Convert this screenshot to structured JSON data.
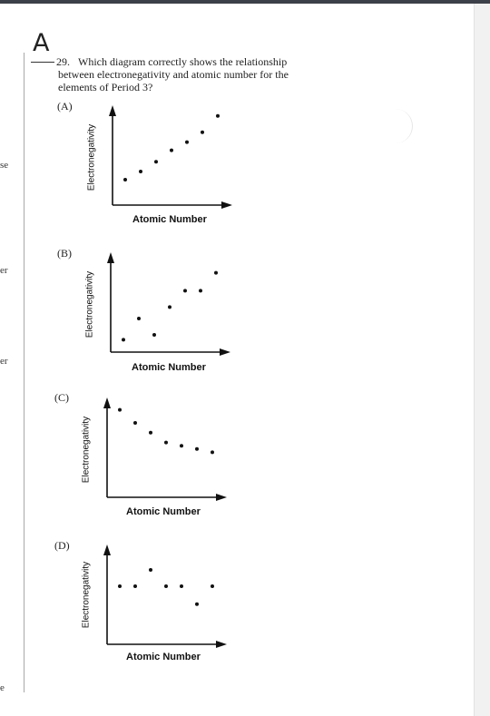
{
  "left_fragments": [
    "se",
    "er",
    "er",
    "e"
  ],
  "answer_mark": "A",
  "question": {
    "number": "29.",
    "text": "Which diagram correctly shows the relationship between electronegativity and atomic number for the elements of Period 3?"
  },
  "chart_data": [
    {
      "type": "scatter",
      "label": "(A)",
      "xlabel": "Atomic Number",
      "ylabel": "Electronegativity",
      "x": [
        1,
        2,
        3,
        4,
        5,
        6,
        7
      ],
      "y": [
        1.0,
        1.5,
        2.1,
        2.8,
        3.3,
        3.9,
        4.9
      ]
    },
    {
      "type": "scatter",
      "label": "(B)",
      "xlabel": "Atomic Number",
      "ylabel": "Electronegativity",
      "x": [
        1,
        2,
        3,
        4,
        5,
        6,
        7
      ],
      "y": [
        0.2,
        1.5,
        0.5,
        2.2,
        3.2,
        3.2,
        4.3
      ]
    },
    {
      "type": "scatter",
      "label": "(C)",
      "xlabel": "Atomic Number",
      "ylabel": "Electronegativity",
      "x": [
        1,
        2,
        3,
        4,
        5,
        6,
        7
      ],
      "y": [
        4.8,
        4.0,
        3.4,
        2.8,
        2.6,
        2.4,
        2.2
      ]
    },
    {
      "type": "scatter",
      "label": "(D)",
      "xlabel": "Atomic Number",
      "ylabel": "Electronegativity",
      "x": [
        1,
        2,
        3,
        4,
        5,
        6,
        7
      ],
      "y": [
        3.0,
        3.0,
        4.0,
        3.0,
        3.0,
        1.9,
        3.0
      ]
    }
  ]
}
